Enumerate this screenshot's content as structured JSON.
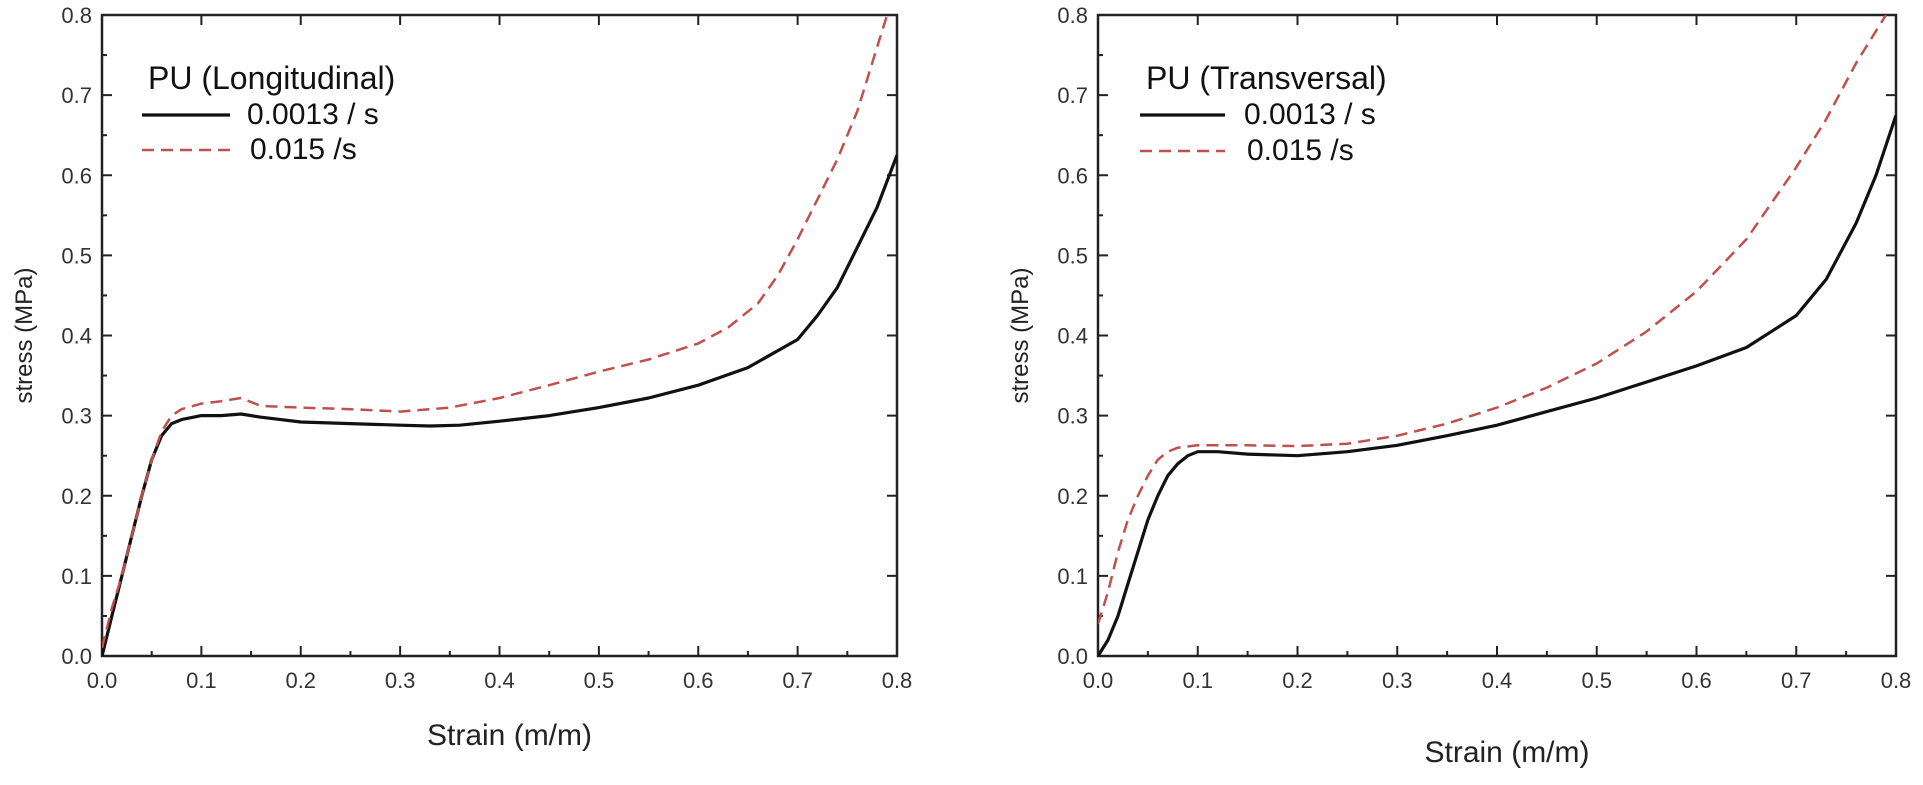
{
  "chart_data": [
    {
      "type": "line",
      "legend_title": "PU (Longitudinal)",
      "xlabel": "Strain (m/m)",
      "ylabel": "stress (MPa)",
      "xlim": [
        0,
        0.8
      ],
      "ylim": [
        0,
        0.8
      ],
      "xticks": [
        "0.0",
        "0.1",
        "0.2",
        "0.3",
        "0.4",
        "0.5",
        "0.6",
        "0.7",
        "0.8"
      ],
      "yticks": [
        "0.0",
        "0.1",
        "0.2",
        "0.3",
        "0.4",
        "0.5",
        "0.6",
        "0.7",
        "0.8"
      ],
      "legend_position": "top-left",
      "grid": false,
      "series": [
        {
          "name": "0.0013 / s",
          "color": "#111111",
          "style": "solid",
          "x": [
            0,
            0.01,
            0.02,
            0.03,
            0.04,
            0.05,
            0.06,
            0.07,
            0.08,
            0.1,
            0.12,
            0.14,
            0.16,
            0.2,
            0.25,
            0.3,
            0.33,
            0.36,
            0.4,
            0.45,
            0.5,
            0.55,
            0.6,
            0.65,
            0.7,
            0.72,
            0.74,
            0.76,
            0.78,
            0.8
          ],
          "y": [
            0,
            0.05,
            0.1,
            0.15,
            0.2,
            0.245,
            0.275,
            0.29,
            0.295,
            0.3,
            0.3,
            0.302,
            0.298,
            0.292,
            0.29,
            0.288,
            0.287,
            0.288,
            0.293,
            0.3,
            0.31,
            0.322,
            0.338,
            0.36,
            0.395,
            0.425,
            0.46,
            0.51,
            0.56,
            0.625
          ]
        },
        {
          "name": "0.015 /s",
          "color": "#c0504d",
          "style": "dashed",
          "x": [
            0,
            0.01,
            0.02,
            0.03,
            0.04,
            0.05,
            0.06,
            0.07,
            0.08,
            0.1,
            0.12,
            0.14,
            0.16,
            0.2,
            0.25,
            0.3,
            0.35,
            0.4,
            0.45,
            0.5,
            0.55,
            0.6,
            0.63,
            0.66,
            0.68,
            0.7,
            0.72,
            0.74,
            0.76,
            0.78,
            0.79
          ],
          "y": [
            0.01,
            0.06,
            0.1,
            0.15,
            0.2,
            0.245,
            0.28,
            0.3,
            0.308,
            0.315,
            0.318,
            0.322,
            0.312,
            0.31,
            0.308,
            0.305,
            0.31,
            0.322,
            0.338,
            0.355,
            0.37,
            0.39,
            0.41,
            0.44,
            0.475,
            0.52,
            0.57,
            0.62,
            0.68,
            0.76,
            0.8
          ]
        }
      ]
    },
    {
      "type": "line",
      "legend_title": "PU (Transversal)",
      "xlabel": "Strain (m/m)",
      "ylabel": "stress (MPa)",
      "xlim": [
        0,
        0.8
      ],
      "ylim": [
        0,
        0.8
      ],
      "xticks": [
        "0.0",
        "0.1",
        "0.2",
        "0.3",
        "0.4",
        "0.5",
        "0.6",
        "0.7",
        "0.8"
      ],
      "yticks": [
        "0.0",
        "0.1",
        "0.2",
        "0.3",
        "0.4",
        "0.5",
        "0.6",
        "0.7",
        "0.8"
      ],
      "legend_position": "top-left",
      "grid": false,
      "series": [
        {
          "name": "0.0013 / s",
          "color": "#111111",
          "style": "solid",
          "x": [
            0,
            0.01,
            0.02,
            0.03,
            0.04,
            0.05,
            0.06,
            0.07,
            0.08,
            0.09,
            0.1,
            0.12,
            0.15,
            0.2,
            0.25,
            0.3,
            0.35,
            0.4,
            0.45,
            0.5,
            0.55,
            0.6,
            0.65,
            0.7,
            0.73,
            0.76,
            0.78,
            0.8
          ],
          "y": [
            0,
            0.02,
            0.05,
            0.09,
            0.13,
            0.17,
            0.2,
            0.225,
            0.24,
            0.25,
            0.255,
            0.255,
            0.252,
            0.25,
            0.255,
            0.263,
            0.275,
            0.288,
            0.305,
            0.322,
            0.342,
            0.362,
            0.385,
            0.425,
            0.47,
            0.54,
            0.6,
            0.675
          ]
        },
        {
          "name": "0.015 /s",
          "color": "#c0504d",
          "style": "dashed",
          "x": [
            0,
            0.01,
            0.02,
            0.03,
            0.04,
            0.05,
            0.06,
            0.07,
            0.08,
            0.1,
            0.12,
            0.15,
            0.2,
            0.25,
            0.3,
            0.35,
            0.4,
            0.45,
            0.5,
            0.55,
            0.6,
            0.65,
            0.7,
            0.73,
            0.76,
            0.78,
            0.79
          ],
          "y": [
            0.04,
            0.08,
            0.13,
            0.17,
            0.2,
            0.225,
            0.245,
            0.255,
            0.26,
            0.263,
            0.263,
            0.263,
            0.262,
            0.265,
            0.275,
            0.29,
            0.31,
            0.335,
            0.365,
            0.405,
            0.455,
            0.52,
            0.61,
            0.67,
            0.74,
            0.78,
            0.8
          ]
        }
      ]
    }
  ]
}
